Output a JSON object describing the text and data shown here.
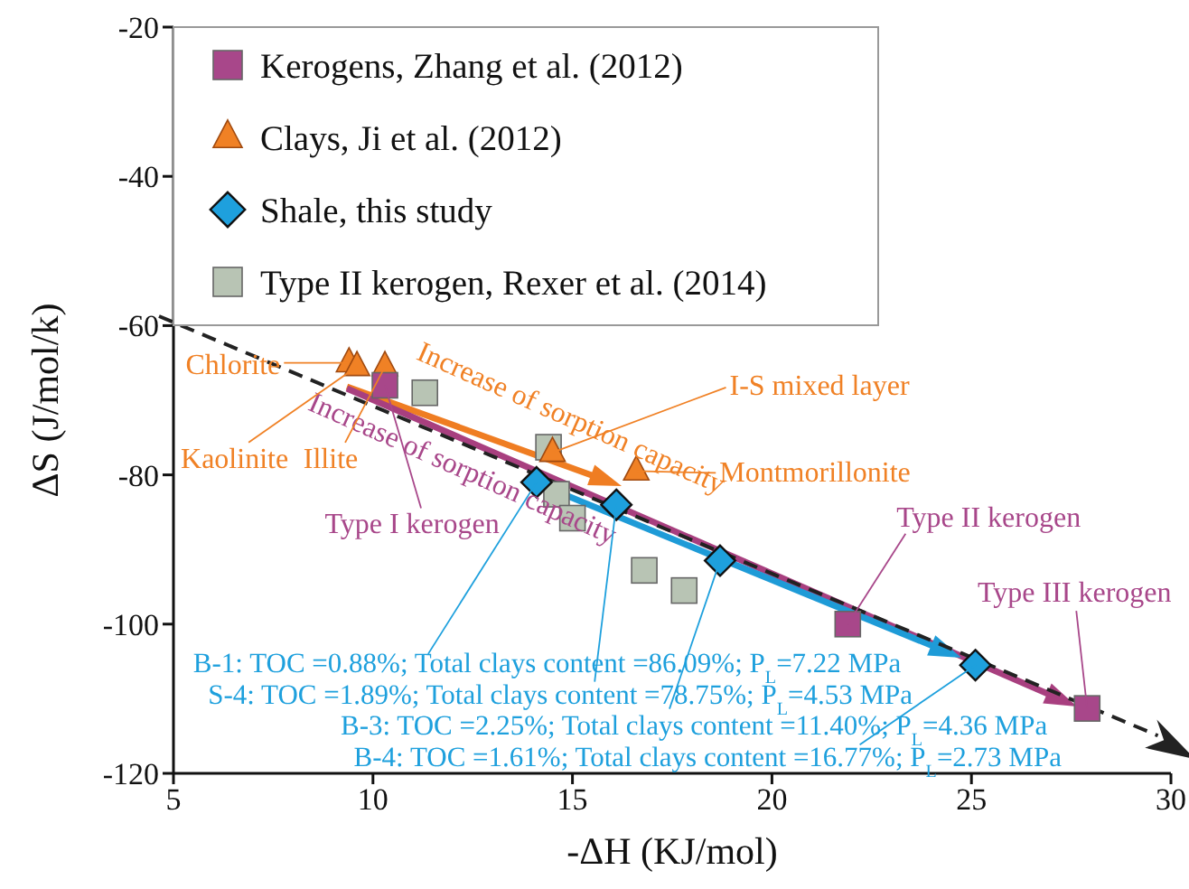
{
  "chart_data": {
    "type": "scatter",
    "xlabel": "-ΔH (KJ/mol)",
    "ylabel": "ΔS (J/mol/k)",
    "xlim": [
      5,
      30
    ],
    "xticks": [
      5,
      10,
      15,
      20,
      25,
      30
    ],
    "ylim": [
      -120,
      -20
    ],
    "yticks": [
      -120,
      -100,
      -80,
      -60,
      -40,
      -20
    ],
    "legend": "top left",
    "series": [
      {
        "name": "Kerogens, Zhang et al. (2012)",
        "marker": "square",
        "color": "#a8478a",
        "x": [
          10.3,
          21.9,
          27.9
        ],
        "values": [
          -68,
          -100,
          -111.3
        ]
      },
      {
        "name": "Clays, Ji et al. (2012)",
        "marker": "triangle",
        "color": "#f08125",
        "x": [
          9.4,
          9.6,
          10.3,
          14.5,
          16.6
        ],
        "values": [
          -65,
          -65.5,
          -65.5,
          -77,
          -79.5
        ]
      },
      {
        "name": "Shale, this study",
        "marker": "diamond",
        "color": "#1ea0dd",
        "x": [
          14.1,
          16.1,
          18.7,
          25.1
        ],
        "values": [
          -81,
          -84,
          -91.5,
          -105.5
        ]
      },
      {
        "name": "Type II kerogen, Rexer et al. (2014)",
        "marker": "square",
        "color": "#b8c4b4",
        "x": [
          11.3,
          14.4,
          14.6,
          15.0,
          16.8,
          17.8
        ],
        "values": [
          -69,
          -76.3,
          -82.6,
          -85.8,
          -92.8,
          -95.5
        ]
      }
    ],
    "annotations": [
      "Increase of sorption capacity",
      "Increase of sorption capacity",
      {
        "text": "Chlorite",
        "x": 9.4,
        "y": -65
      },
      {
        "text": "Kaolinite",
        "x": 9.6,
        "y": -65.5
      },
      {
        "text": "Illite",
        "x": 10.3,
        "y": -65.5
      },
      {
        "text": "I-S mixed layer",
        "x": 14.5,
        "y": -77
      },
      {
        "text": "Montmorillonite",
        "x": 16.6,
        "y": -79.5
      },
      {
        "text": "Type I kerogen",
        "x": 10.3,
        "y": -68
      },
      {
        "text": "Type II kerogen",
        "x": 21.9,
        "y": -100
      },
      {
        "text": "Type III kerogen",
        "x": 27.9,
        "y": -111.3
      },
      {
        "text": "B-1: TOC =0.88%; Total clays content =86.09%; P$_{L}$=7.22 MPa",
        "x": 14.1,
        "y": -81
      },
      {
        "text": "S-4: TOC =1.89%; Total clays content =78.75%; P$_{L}$=4.53 MPa",
        "x": 16.1,
        "y": -84
      },
      {
        "text": "B-3: TOC =2.25%; Total clays content =11.40%; P$_{L}$=4.36 MPa",
        "x": 18.7,
        "y": -91.5
      },
      {
        "text": "B-4: TOC =1.61%; Total clays content =16.77%; P$_{L}$=2.73 MPa",
        "x": 25.1,
        "y": -105.5
      }
    ]
  }
}
